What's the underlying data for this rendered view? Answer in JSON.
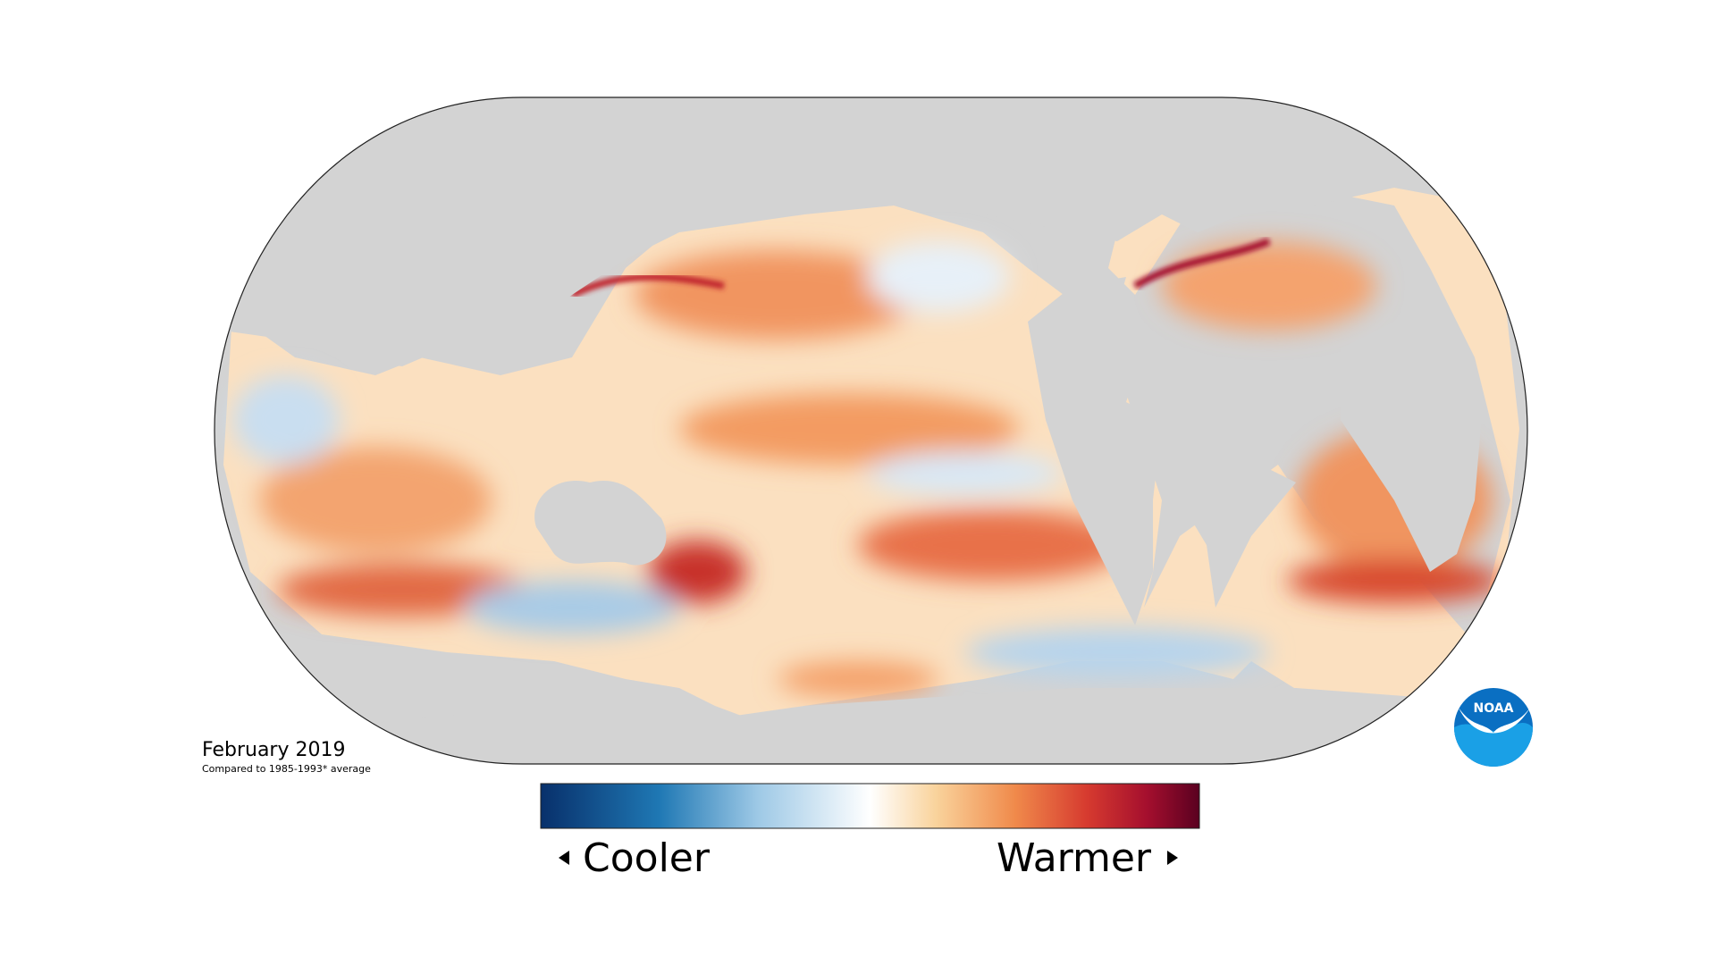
{
  "title": "February 2019",
  "subtitle": "Compared to 1985-1993* average",
  "legend": {
    "low": "Cooler",
    "high": "Warmer"
  },
  "logo": "NOAA"
}
